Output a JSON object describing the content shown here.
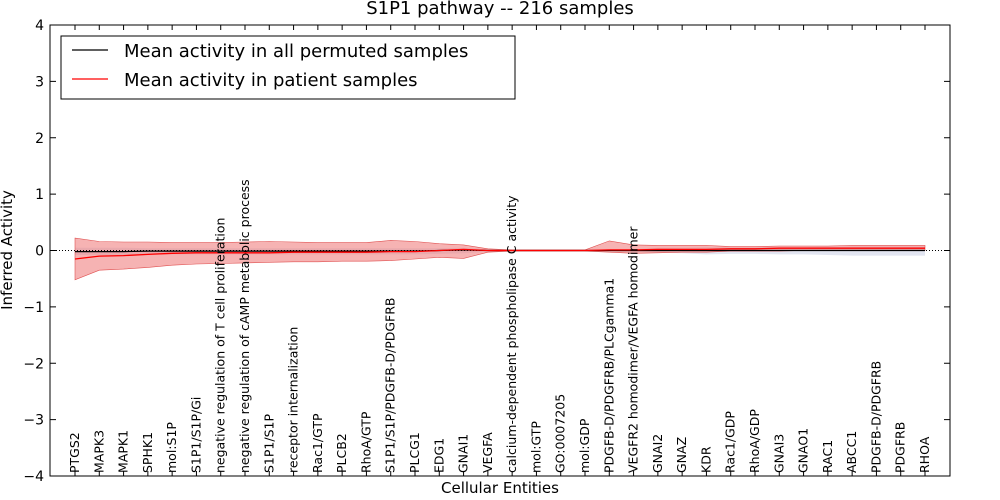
{
  "chart_data": {
    "type": "line",
    "title": "S1P1 pathway -- 216 samples",
    "xlabel": "Cellular Entities",
    "ylabel": "Inferred Activity",
    "ylim": [
      -4,
      4
    ],
    "yticks": [
      "−4",
      "−3",
      "−2",
      "−1",
      "0",
      "1",
      "2",
      "3",
      "4"
    ],
    "ytick_values": [
      -4,
      -3,
      -2,
      -1,
      0,
      1,
      2,
      3,
      4
    ],
    "legend_position": "top-left",
    "categories": [
      "PTGS2",
      "MAPK3",
      "MAPK1",
      "SPHK1",
      "mol:S1P",
      "S1P1/S1P/Gi",
      "negative regulation of T cell proliferation",
      "negative regulation of cAMP metabolic process",
      "S1P1/S1P",
      "receptor internalization",
      "Rac1/GTP",
      "PLCB2",
      "RhoA/GTP",
      "S1P1/S1P/PDGFB-D/PDGFRB",
      "PLCG1",
      "EDG1",
      "GNAI1",
      "VEGFA",
      "calcium-dependent phospholipase C activity",
      "mol:GTP",
      "GO:0007205",
      "mol:GDP",
      "PDGFB-D/PDGFRB/PLCgamma1",
      "VEGFR2 homodimer/VEGFA homodimer",
      "GNAI2",
      "GNAZ",
      "KDR",
      "Rac1/GDP",
      "RhoA/GDP",
      "GNAI3",
      "GNAO1",
      "RAC1",
      "ABCC1",
      "PDGFB-D/PDGFRB",
      "PDGFRB",
      "RHOA"
    ],
    "series": [
      {
        "name": "Mean activity in all permuted samples",
        "color": "#000000",
        "values": [
          -0.02,
          -0.02,
          -0.02,
          -0.01,
          -0.01,
          -0.01,
          -0.01,
          -0.01,
          -0.01,
          -0.01,
          -0.01,
          -0.01,
          -0.01,
          -0.01,
          -0.01,
          0.0,
          0.01,
          0.0,
          0.0,
          0.0,
          0.0,
          0.0,
          0.0,
          0.0,
          0.0,
          0.0,
          0.0,
          0.0,
          0.0,
          0.0,
          0.0,
          0.0,
          0.0,
          0.0,
          0.0,
          0.0
        ],
        "band_upper": [
          0.05,
          0.05,
          0.05,
          0.04,
          0.04,
          0.04,
          0.04,
          0.04,
          0.04,
          0.04,
          0.04,
          0.04,
          0.04,
          0.04,
          0.04,
          0.04,
          0.05,
          0.02,
          0.01,
          0.01,
          0.01,
          0.01,
          0.01,
          0.02,
          0.05,
          0.05,
          0.06,
          0.05,
          0.05,
          0.06,
          0.06,
          0.07,
          0.07,
          0.07,
          0.07,
          0.07
        ],
        "band_lower": [
          -0.08,
          -0.08,
          -0.08,
          -0.07,
          -0.07,
          -0.07,
          -0.07,
          -0.07,
          -0.07,
          -0.07,
          -0.07,
          -0.07,
          -0.07,
          -0.07,
          -0.07,
          -0.06,
          -0.05,
          -0.02,
          -0.01,
          -0.01,
          -0.01,
          -0.01,
          -0.01,
          -0.02,
          -0.04,
          -0.05,
          -0.07,
          -0.06,
          -0.06,
          -0.07,
          -0.07,
          -0.08,
          -0.09,
          -0.09,
          -0.09,
          -0.09
        ],
        "band_color": "#dde0ee"
      },
      {
        "name": "Mean activity in patient samples",
        "color": "#ff0000",
        "values": [
          -0.15,
          -0.1,
          -0.09,
          -0.07,
          -0.05,
          -0.04,
          -0.04,
          -0.04,
          -0.04,
          -0.03,
          -0.03,
          -0.03,
          -0.03,
          -0.02,
          -0.02,
          0.0,
          0.02,
          0.0,
          0.0,
          0.0,
          0.0,
          0.0,
          0.01,
          0.01,
          0.02,
          0.02,
          0.02,
          0.03,
          0.03,
          0.04,
          0.04,
          0.04,
          0.04,
          0.04,
          0.04,
          0.04
        ],
        "band_upper": [
          0.22,
          0.16,
          0.15,
          0.15,
          0.14,
          0.14,
          0.14,
          0.15,
          0.16,
          0.15,
          0.14,
          0.14,
          0.14,
          0.18,
          0.16,
          0.12,
          0.1,
          0.03,
          0.01,
          0.01,
          0.01,
          0.01,
          0.17,
          0.1,
          0.09,
          0.09,
          0.09,
          0.07,
          0.07,
          0.08,
          0.08,
          0.08,
          0.09,
          0.09,
          0.09,
          0.09
        ],
        "band_lower": [
          -0.52,
          -0.35,
          -0.33,
          -0.3,
          -0.26,
          -0.24,
          -0.23,
          -0.22,
          -0.21,
          -0.2,
          -0.2,
          -0.19,
          -0.19,
          -0.18,
          -0.15,
          -0.12,
          -0.14,
          -0.03,
          -0.01,
          -0.01,
          -0.01,
          -0.01,
          -0.03,
          -0.05,
          -0.04,
          -0.03,
          -0.03,
          -0.01,
          -0.01,
          -0.01,
          0.0,
          0.0,
          0.0,
          0.0,
          0.0,
          0.0
        ],
        "band_color": "#f08080"
      }
    ]
  }
}
